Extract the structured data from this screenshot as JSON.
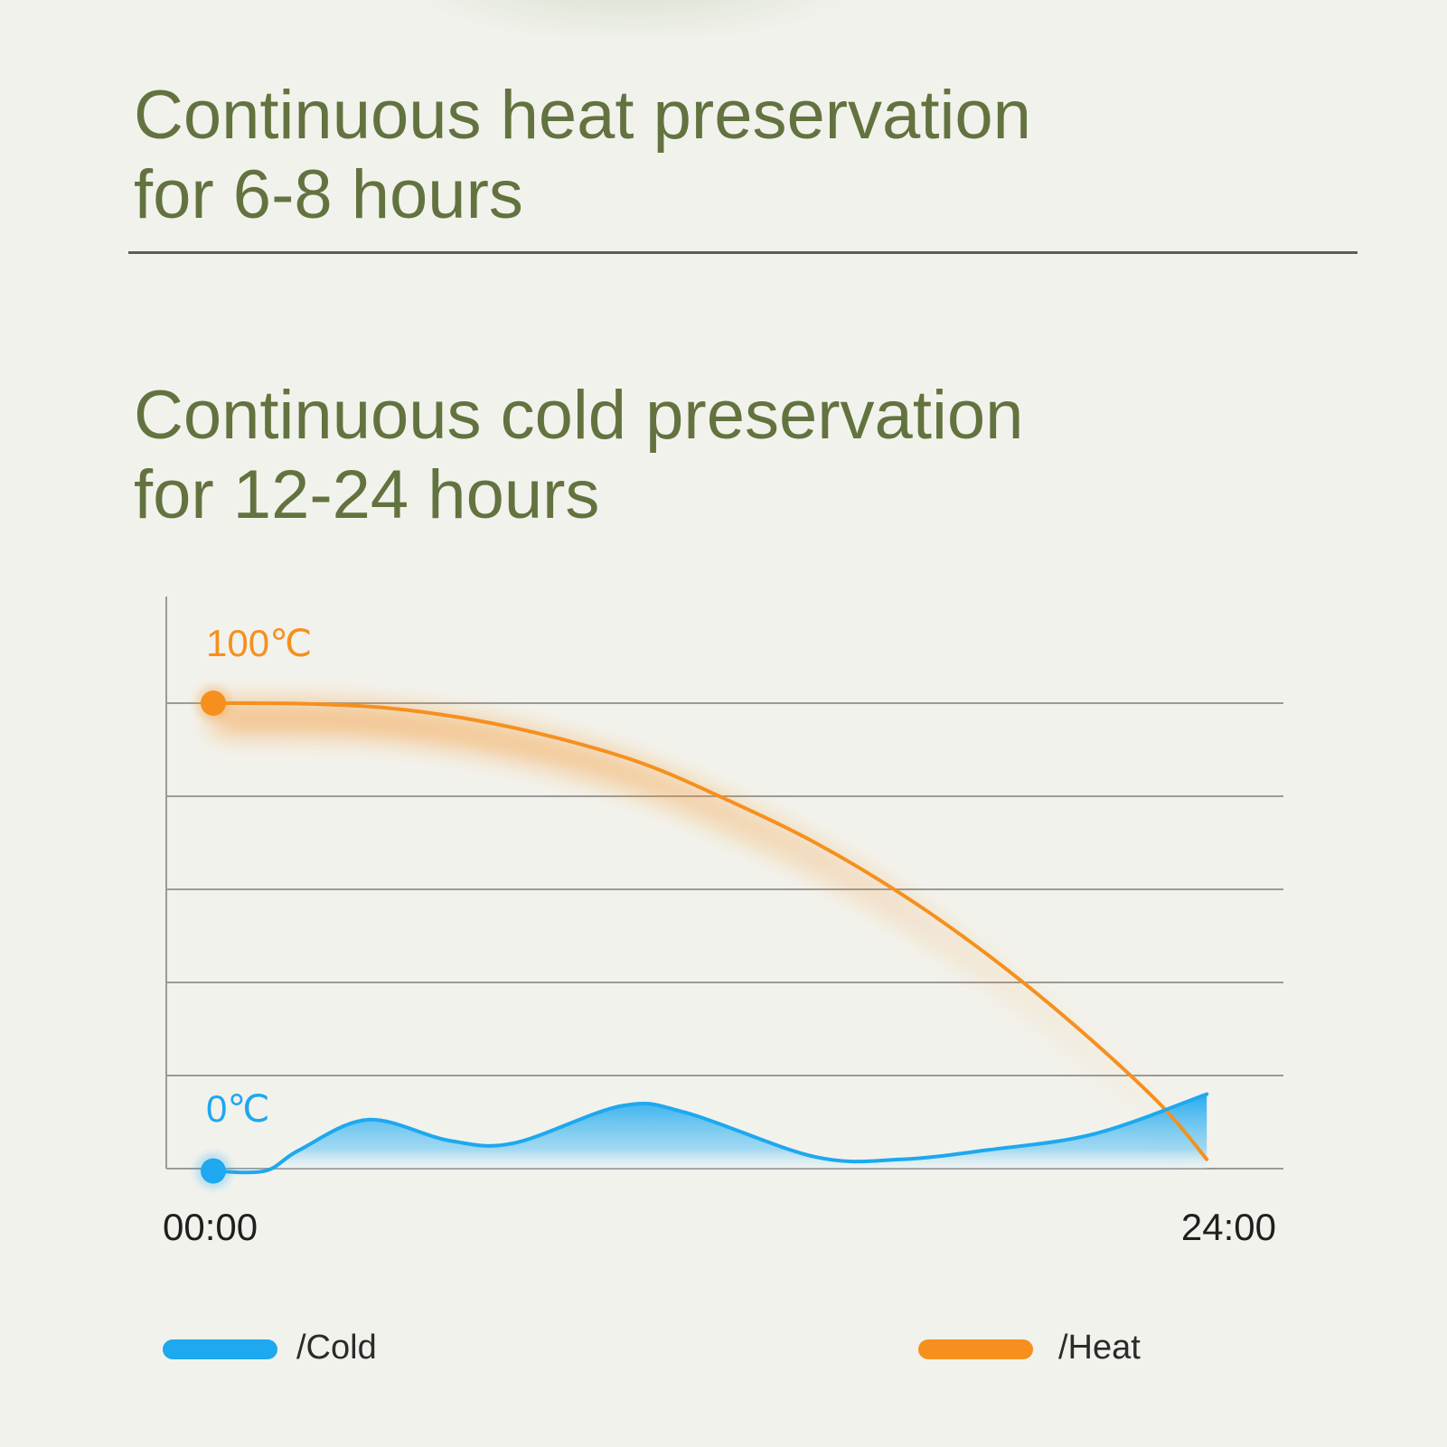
{
  "headings": {
    "heat": {
      "line1": "Continuous heat preservation",
      "line2": "for 6-8 hours"
    },
    "cold": {
      "line1": "Continuous cold preservation",
      "line2": "for 12-24 hours"
    }
  },
  "colors": {
    "heading": "#62733f",
    "heat": "#f5901e",
    "cold": "#1ea8ef",
    "grid": "#9a9a9a",
    "axis_text": "#1f1f1f"
  },
  "chart_data": {
    "type": "area",
    "x_labels": [
      "00:00",
      "24:00"
    ],
    "x_range": [
      0,
      24
    ],
    "y_range": [
      0,
      100
    ],
    "y_labels": [
      {
        "text": "100℃",
        "value": 100,
        "series": "heat"
      },
      {
        "text": "0℃",
        "value": 0,
        "series": "cold"
      }
    ],
    "grid": true,
    "legend_position": "bottom",
    "series": [
      {
        "key": "heat",
        "name": "/Heat",
        "color": "#f5901e",
        "start_marker": true,
        "points": [
          [
            0,
            100
          ],
          [
            2,
            99.9
          ],
          [
            4,
            99
          ],
          [
            6,
            96.5
          ],
          [
            8,
            92.5
          ],
          [
            10,
            87
          ],
          [
            12,
            79
          ],
          [
            14,
            70
          ],
          [
            16,
            59
          ],
          [
            18,
            46
          ],
          [
            20,
            31
          ],
          [
            22,
            14
          ],
          [
            23.1,
            2
          ]
        ]
      },
      {
        "key": "cold",
        "name": "/Cold",
        "color": "#1ea8ef",
        "start_marker": true,
        "points": [
          [
            0,
            -0.5
          ],
          [
            1.2,
            -0.5
          ],
          [
            2,
            4
          ],
          [
            3.6,
            10.5
          ],
          [
            5.5,
            6
          ],
          [
            7,
            5.5
          ],
          [
            9.5,
            13.5
          ],
          [
            11,
            12
          ],
          [
            14,
            2.5
          ],
          [
            16,
            2
          ],
          [
            18,
            4
          ],
          [
            20.5,
            7.5
          ],
          [
            23.1,
            16
          ]
        ]
      }
    ]
  },
  "legend": [
    {
      "key": "cold",
      "label": "/Cold",
      "color": "#1ea8ef"
    },
    {
      "key": "heat",
      "label": "/Heat",
      "color": "#f5901e"
    }
  ]
}
